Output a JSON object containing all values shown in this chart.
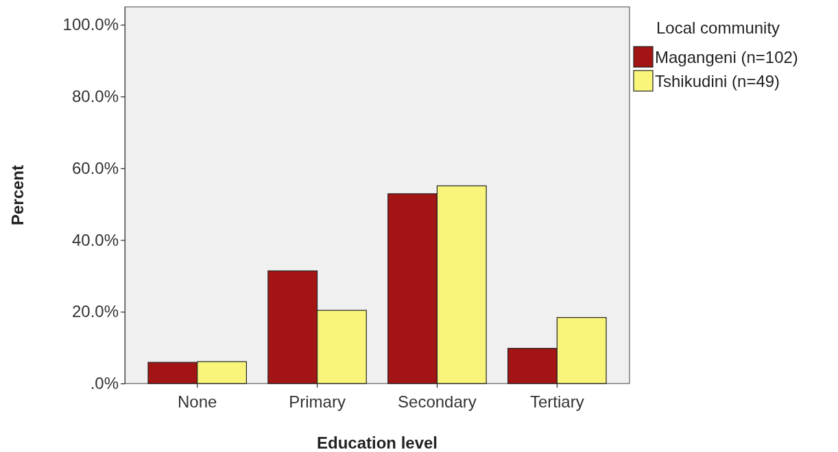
{
  "chart_data": {
    "type": "bar",
    "xlabel": "Education level",
    "ylabel": "Percent",
    "legend_title": "Local community",
    "categories": [
      "None",
      "Primary",
      "Secondary",
      "Tertiary"
    ],
    "series": [
      {
        "name": "Magangeni (n=102)",
        "color": "#a31515",
        "values": [
          5.9,
          31.4,
          52.9,
          9.8
        ]
      },
      {
        "name": "Tshikudini (n=49)",
        "color": "#f9f57a",
        "values": [
          6.1,
          20.4,
          55.1,
          18.4
        ]
      }
    ],
    "ylim": [
      0,
      105
    ],
    "yticks": [
      {
        "value": 0,
        "label": ".0%"
      },
      {
        "value": 20,
        "label": "20.0%"
      },
      {
        "value": 40,
        "label": "40.0%"
      },
      {
        "value": 60,
        "label": "60.0%"
      },
      {
        "value": 80,
        "label": "80.0%"
      },
      {
        "value": 100,
        "label": "100.0%"
      }
    ],
    "grid": false,
    "legend": "right"
  }
}
